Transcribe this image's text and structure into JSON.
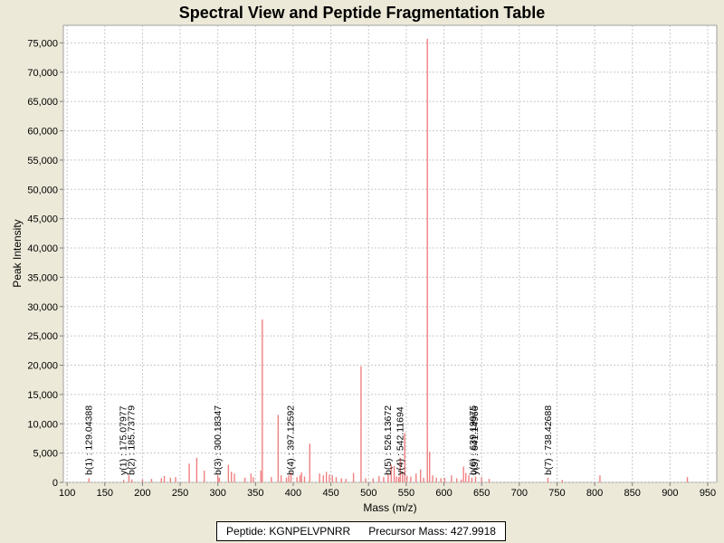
{
  "chart_data": {
    "type": "bar",
    "title": "Spectral View and Peptide Fragmentation Table",
    "xlabel": "Mass (m/z)",
    "ylabel": "Peak Intensity",
    "xlim": [
      95,
      962
    ],
    "ylim": [
      0,
      78000
    ],
    "xticks": [
      100,
      150,
      200,
      250,
      300,
      350,
      400,
      450,
      500,
      550,
      600,
      650,
      700,
      750,
      800,
      850,
      900,
      950
    ],
    "yticks": [
      0,
      5000,
      10000,
      15000,
      20000,
      25000,
      30000,
      35000,
      40000,
      45000,
      50000,
      55000,
      60000,
      65000,
      70000,
      75000
    ],
    "grid": true,
    "series": [
      {
        "x": [
          129,
          175,
          182,
          186,
          200,
          212,
          225,
          229,
          237,
          244,
          262,
          272,
          282,
          300,
          302,
          314,
          318,
          322,
          336,
          344,
          347,
          357,
          359,
          371,
          380,
          384,
          391,
          394,
          397,
          405,
          409,
          411,
          415,
          422,
          435,
          440,
          444,
          448,
          452,
          457,
          464,
          470,
          480,
          490,
          496,
          506,
          514,
          520,
          526,
          530,
          534,
          537,
          540,
          542,
          545,
          548,
          551,
          556,
          563,
          569,
          573,
          578,
          581,
          585,
          590,
          596,
          601,
          610,
          617,
          623,
          626,
          629,
          633,
          637,
          642,
          650,
          660,
          738,
          757,
          807,
          923
        ],
        "y": [
          700,
          400,
          1200,
          500,
          500,
          600,
          700,
          1100,
          800,
          900,
          3200,
          4200,
          2000,
          1200,
          800,
          3000,
          1800,
          1500,
          800,
          1500,
          900,
          2000,
          27800,
          900,
          11500,
          1200,
          800,
          1200,
          1800,
          900,
          1200,
          1700,
          1000,
          6600,
          1500,
          1200,
          1800,
          1300,
          1200,
          900,
          700,
          600,
          1600,
          19800,
          700,
          700,
          1100,
          900,
          1500,
          3000,
          2800,
          1000,
          900,
          4200,
          1800,
          8400,
          1100,
          1000,
          1500,
          2200,
          800,
          75700,
          5200,
          1200,
          800,
          700,
          800,
          1200,
          700,
          500,
          2700,
          1600,
          1200,
          800,
          1000,
          900,
          600,
          800,
          400,
          1200,
          900
        ]
      }
    ],
    "annotations": [
      {
        "x": 129.04388,
        "text": "b(1) : 129.04388"
      },
      {
        "x": 175.07977,
        "text": "y(1) : 175.07977"
      },
      {
        "x": 185.73779,
        "text": "b(2) : 185.73779"
      },
      {
        "x": 300.18347,
        "text": "b(3) : 300.18347"
      },
      {
        "x": 397.12592,
        "text": "b(4) : 397.12592"
      },
      {
        "x": 526.13672,
        "text": "b(5) : 526.13672"
      },
      {
        "x": 542.11694,
        "text": "y(4) : 542.11694"
      },
      {
        "x": 639.19975,
        "text": "b(6) : 639.19975"
      },
      {
        "x": 641.14966,
        "text": "y(5) : 641.14966"
      },
      {
        "x": 738.42688,
        "text": "b(7) : 738.42688"
      }
    ]
  },
  "legend": {
    "peptide": "Peptide: KGNPELVPNRR",
    "precursor": "Precursor Mass: 427.9918"
  },
  "colors": {
    "peak": "#f08080",
    "grid": "#c8c8c8",
    "plot_background": "#ffffff",
    "page_background": "#ece9d8"
  }
}
